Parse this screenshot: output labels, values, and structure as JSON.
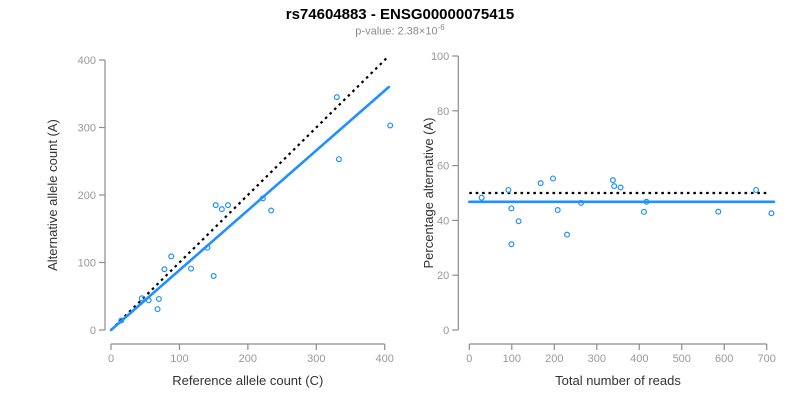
{
  "header": {
    "title": "rs74604883 - ENSG00000075415",
    "pvalue_label": "p-value: 2.38×10",
    "pvalue_exponent": "-6"
  },
  "colors": {
    "point_blue": "#1E90FF",
    "identity_black": "#000000",
    "axis_line": "#8C8C8C",
    "tick_label": "#999999",
    "axis_title": "#333333",
    "title": "#000000",
    "subtitle": "#8C8C8C"
  },
  "chart_data": [
    {
      "type": "scatter",
      "panel": "left",
      "xlabel": "Reference allele count (C)",
      "ylabel": "Alternative allele count (A)",
      "xlim": [
        0,
        400
      ],
      "ylim": [
        0,
        400
      ],
      "xticks": [
        0,
        100,
        200,
        300,
        400
      ],
      "yticks": [
        0,
        100,
        200,
        300,
        400
      ],
      "grid": false,
      "legend": null,
      "points": [
        [
          15,
          14
        ],
        [
          45,
          47
        ],
        [
          55,
          44
        ],
        [
          68,
          31
        ],
        [
          70,
          46
        ],
        [
          78,
          90
        ],
        [
          88,
          109
        ],
        [
          117,
          91
        ],
        [
          141,
          122
        ],
        [
          150,
          80
        ],
        [
          153,
          185
        ],
        [
          162,
          179
        ],
        [
          171,
          185
        ],
        [
          222,
          195
        ],
        [
          234,
          177
        ],
        [
          330,
          345
        ],
        [
          333,
          253
        ],
        [
          408,
          303
        ]
      ],
      "lines": [
        {
          "name": "identity-reference-line",
          "style": "dotted",
          "color": "#000000",
          "from": [
            0,
            0
          ],
          "to": [
            405,
            405
          ]
        },
        {
          "name": "regression-line",
          "style": "solid",
          "color": "#1E90FF",
          "from": [
            0,
            0
          ],
          "to": [
            406,
            360
          ]
        }
      ]
    },
    {
      "type": "scatter",
      "panel": "right",
      "xlabel": "Total number of reads",
      "ylabel": "Percentage alternative (A)",
      "xlim": [
        0,
        700
      ],
      "ylim": [
        0,
        100
      ],
      "xticks": [
        0,
        100,
        200,
        300,
        400,
        500,
        600,
        700
      ],
      "yticks": [
        0,
        20,
        40,
        60,
        80,
        100
      ],
      "grid": false,
      "legend": null,
      "points": [
        [
          29,
          48.3
        ],
        [
          92,
          51.1
        ],
        [
          99,
          44.4
        ],
        [
          99,
          31.3
        ],
        [
          116,
          39.7
        ],
        [
          168,
          53.6
        ],
        [
          197,
          55.3
        ],
        [
          208,
          43.8
        ],
        [
          263,
          46.4
        ],
        [
          230,
          34.8
        ],
        [
          338,
          54.7
        ],
        [
          341,
          52.5
        ],
        [
          356,
          52.0
        ],
        [
          417,
          46.8
        ],
        [
          411,
          43.1
        ],
        [
          675,
          51.1
        ],
        [
          586,
          43.2
        ],
        [
          711,
          42.6
        ]
      ],
      "lines": [
        {
          "name": "expected-50-percent-line",
          "style": "dotted",
          "color": "#000000",
          "from": [
            0,
            50
          ],
          "to": [
            703,
            50
          ]
        },
        {
          "name": "fitted-percentage-line",
          "style": "solid",
          "color": "#1E90FF",
          "from": [
            0,
            46.8
          ],
          "to": [
            717,
            46.8
          ]
        }
      ]
    }
  ]
}
